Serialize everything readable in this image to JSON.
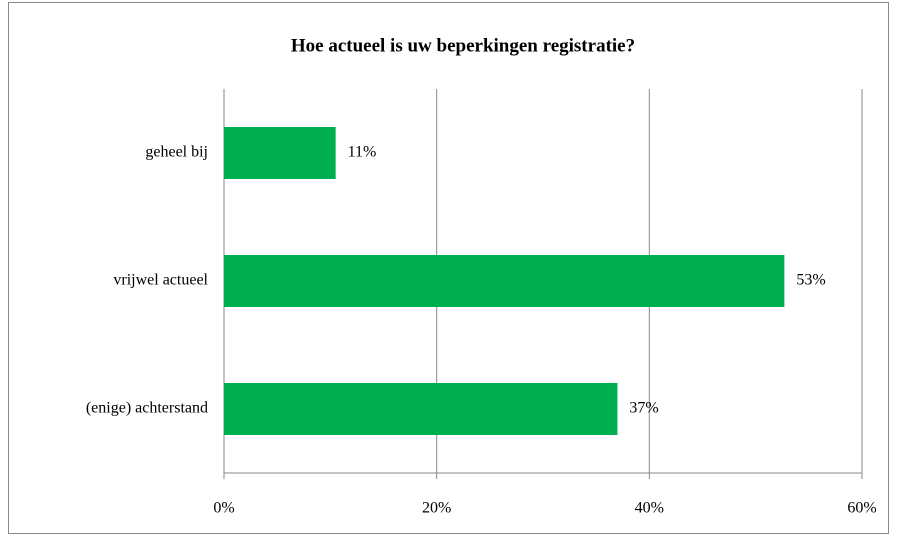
{
  "chart_data": {
    "type": "hbar",
    "title": "Hoe actueel is uw beperkingen registratie?",
    "categories": [
      "geheel bij",
      "vrijwel actueel",
      "(enige) achterstand"
    ],
    "values": [
      10.5,
      52.7,
      37.0
    ],
    "value_labels": [
      "11%",
      "53%",
      "37%"
    ],
    "color": "#00b050",
    "xlim": [
      0,
      60
    ],
    "xticks": [
      {
        "value": 0,
        "label": "0%"
      },
      {
        "value": 20,
        "label": "20%"
      },
      {
        "value": 40,
        "label": "40%"
      },
      {
        "value": 60,
        "label": "60%"
      }
    ],
    "grid": true
  }
}
